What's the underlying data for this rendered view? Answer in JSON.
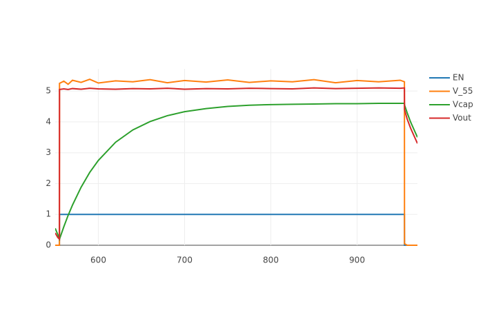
{
  "chart_data": {
    "type": "line",
    "x": [
      550,
      553,
      554.9,
      555,
      560,
      565,
      570,
      580,
      590,
      600,
      620,
      640,
      660,
      680,
      700,
      725,
      750,
      775,
      800,
      825,
      850,
      875,
      900,
      925,
      950,
      954.9,
      955,
      958,
      962,
      966,
      970
    ],
    "series": [
      {
        "name": "EN",
        "color": "#1f77b4",
        "values": [
          0,
          0,
          0,
          1,
          1,
          1,
          1,
          1,
          1,
          1,
          1,
          1,
          1,
          1,
          1,
          1,
          1,
          1,
          1,
          1,
          1,
          1,
          1,
          1,
          1,
          1,
          0,
          0,
          0,
          0,
          0
        ]
      },
      {
        "name": "V_55",
        "color": "#ff7f0e",
        "values": [
          0,
          0,
          0,
          5.25,
          5.32,
          5.22,
          5.35,
          5.28,
          5.38,
          5.26,
          5.33,
          5.3,
          5.37,
          5.27,
          5.34,
          5.29,
          5.36,
          5.28,
          5.33,
          5.3,
          5.37,
          5.27,
          5.34,
          5.3,
          5.35,
          5.3,
          0.05,
          0,
          0,
          0,
          0
        ]
      },
      {
        "name": "Vcap",
        "color": "#2ca02c",
        "values": [
          0.55,
          0.35,
          0.21,
          0.2,
          0.6,
          0.97,
          1.3,
          1.88,
          2.36,
          2.75,
          3.34,
          3.74,
          4.01,
          4.2,
          4.33,
          4.43,
          4.5,
          4.54,
          4.56,
          4.57,
          4.58,
          4.59,
          4.59,
          4.6,
          4.6,
          4.6,
          4.55,
          4.3,
          4.0,
          3.75,
          3.5
        ]
      },
      {
        "name": "Vout",
        "color": "#d62728",
        "values": [
          0.4,
          0.25,
          0.2,
          5.05,
          5.07,
          5.05,
          5.08,
          5.06,
          5.09,
          5.07,
          5.06,
          5.08,
          5.07,
          5.09,
          5.06,
          5.08,
          5.07,
          5.09,
          5.08,
          5.07,
          5.1,
          5.08,
          5.09,
          5.1,
          5.09,
          5.1,
          4.4,
          4.1,
          3.8,
          3.55,
          3.3
        ]
      }
    ],
    "xlim": [
      550,
      970
    ],
    "ylim": [
      0,
      5.45
    ],
    "xticks": [
      600,
      700,
      800,
      900
    ],
    "yticks": [
      0,
      1,
      2,
      3,
      4,
      5
    ],
    "grid": true,
    "legend": "right"
  }
}
